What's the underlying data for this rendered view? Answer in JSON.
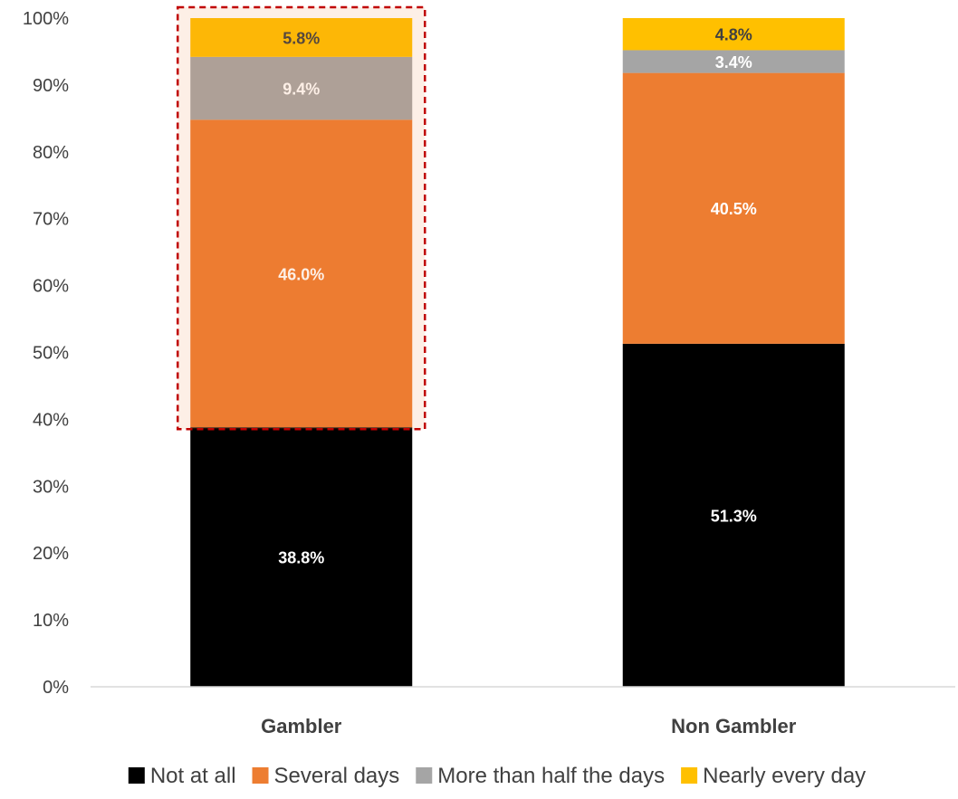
{
  "chart_data": {
    "type": "bar",
    "stacked": true,
    "categories": [
      "Gambler",
      "Non Gambler"
    ],
    "series": [
      {
        "name": "Not at all",
        "values": [
          38.8,
          51.3
        ],
        "labels": [
          "38.8%",
          "51.3%"
        ],
        "color": "#000000",
        "label_color": "#ffffff"
      },
      {
        "name": "Several days",
        "values": [
          46.0,
          40.5
        ],
        "labels": [
          "46.0%",
          "40.5%"
        ],
        "color": "#ED7D31",
        "label_color": "#ffffff"
      },
      {
        "name": "More than half the days",
        "values": [
          9.4,
          3.4
        ],
        "labels": [
          "9.4%",
          "3.4%"
        ],
        "color": "#A5A5A5",
        "label_color": "#ffffff"
      },
      {
        "name": "Nearly every day",
        "values": [
          5.8,
          4.8
        ],
        "labels": [
          "5.8%",
          "4.8%"
        ],
        "color": "#FFC000",
        "label_color": "#404040"
      }
    ],
    "y_ticks": [
      "0%",
      "10%",
      "20%",
      "30%",
      "40%",
      "50%",
      "60%",
      "70%",
      "80%",
      "90%",
      "100%"
    ],
    "ylim": [
      0,
      100
    ],
    "grid": false,
    "legend_position": "bottom",
    "highlight": {
      "category": "Gambler",
      "from": 38.8,
      "to": 100,
      "color": "#C00000",
      "style": "dashed"
    }
  }
}
